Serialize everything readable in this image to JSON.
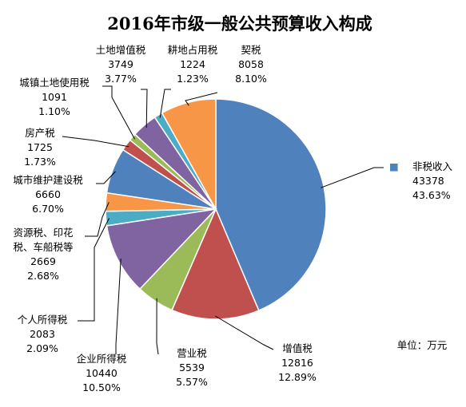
{
  "chart_data": {
    "type": "pie",
    "title": "2016年市级一般公共预算收入构成",
    "unit_label": "单位：万元",
    "slices": [
      {
        "name": "非税收入",
        "value": "43378",
        "percent": "43.63%",
        "color": "#4f81bd",
        "legend_marker": "■"
      },
      {
        "name": "增值税",
        "value": "12816",
        "percent": "12.89%",
        "color": "#c0504d"
      },
      {
        "name": "营业税",
        "value": "5539",
        "percent": "5.57%",
        "color": "#9bbb59"
      },
      {
        "name": "企业所得税",
        "value": "10440",
        "percent": "10.50%",
        "color": "#8064a2"
      },
      {
        "name": "个人所得税",
        "value": "2083",
        "percent": "2.09%",
        "color": "#4bacc6"
      },
      {
        "name": "资源税、印花税、车船税等",
        "name_lines": [
          "资源税、印花",
          "税、车船税等"
        ],
        "value": "2669",
        "percent": "2.68%",
        "color": "#f79646"
      },
      {
        "name": "城市维护建设税",
        "value": "6660",
        "percent": "6.70%",
        "color": "#4f81bd"
      },
      {
        "name": "房产税",
        "value": "1725",
        "percent": "1.73%",
        "color": "#c0504d"
      },
      {
        "name": "城镇土地使用税",
        "value": "1091",
        "percent": "1.10%",
        "color": "#9bbb59"
      },
      {
        "name": "土地增值税",
        "value": "3749",
        "percent": "3.77%",
        "color": "#8064a2"
      },
      {
        "name": "耕地占用税",
        "value": "1224",
        "percent": "1.23%",
        "color": "#4bacc6"
      },
      {
        "name": "契税",
        "value": "8058",
        "percent": "8.10%",
        "color": "#f79646"
      }
    ]
  }
}
